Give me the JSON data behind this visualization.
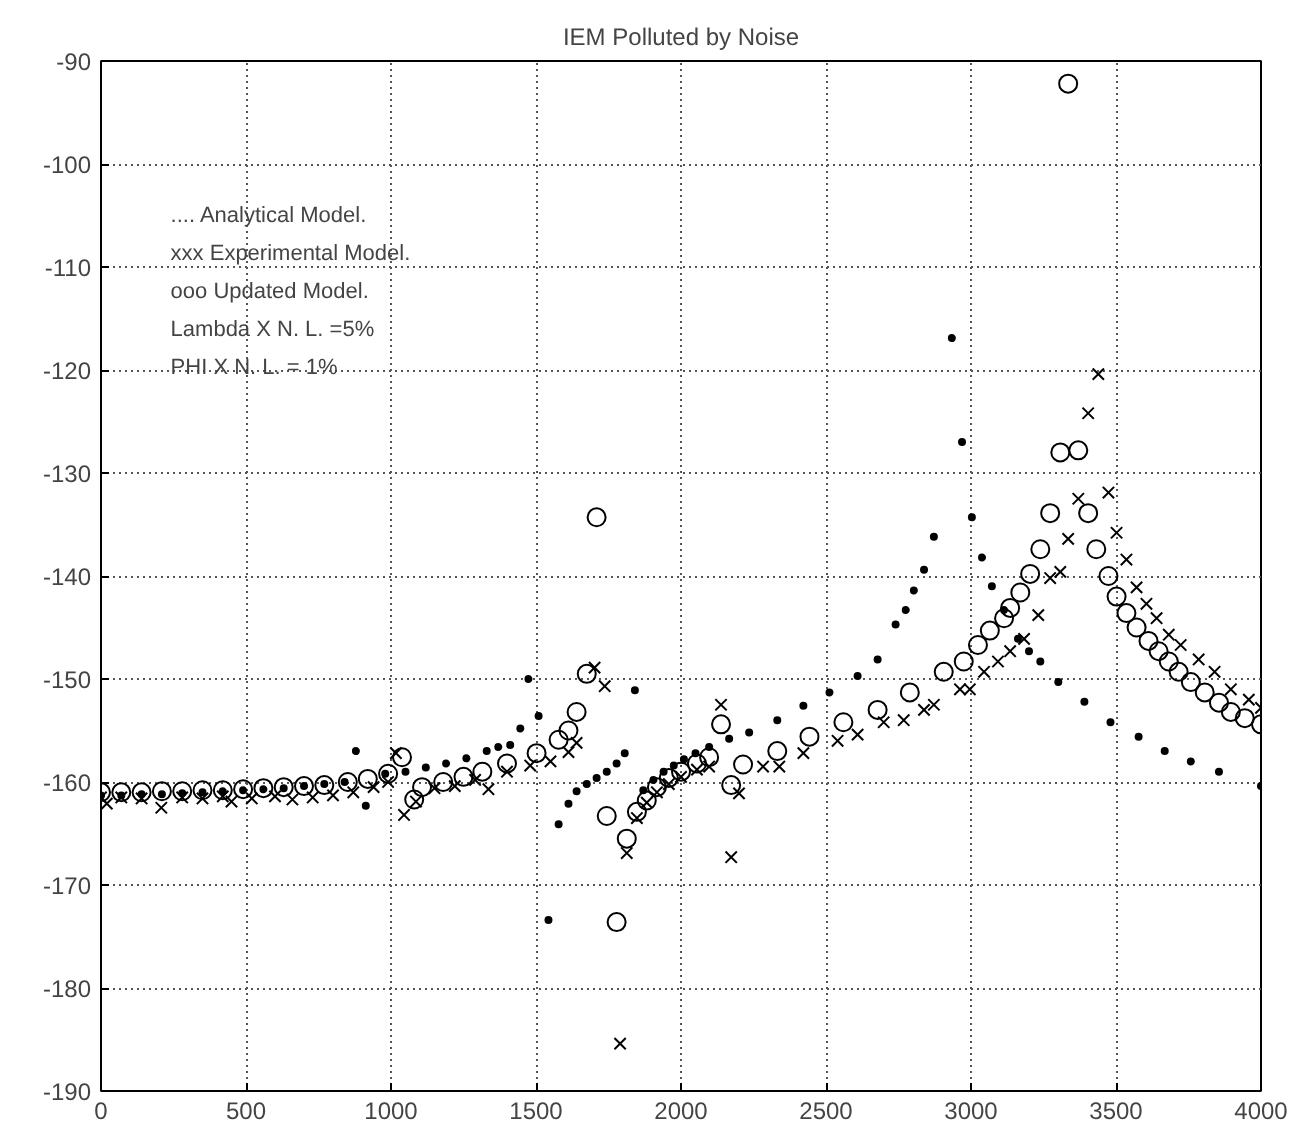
{
  "chart_data": {
    "type": "scatter",
    "title": "IEM Polluted by Noise",
    "annotations": [
      ".... Analytical Model.",
      "xxx Experimental Model.",
      "ooo Updated Model.",
      "Lambda X N. L. =5%",
      "PHI X N. L. = 1%"
    ],
    "xlim": [
      0,
      4000
    ],
    "xticks": [
      0,
      500,
      1000,
      1500,
      2000,
      2500,
      3000,
      3500,
      4000
    ],
    "ylim": [
      -190,
      -90
    ],
    "yticks": [
      -190,
      -180,
      -170,
      -160,
      -150,
      -140,
      -130,
      -120,
      -110,
      -100,
      -90
    ],
    "grid": true,
    "series": [
      {
        "marker": "dot",
        "color": "#000000",
        "x": [
          0,
          70,
          140,
          210,
          280,
          350,
          420,
          490,
          560,
          630,
          700,
          770,
          840,
          879,
          913,
          980,
          1050,
          1120,
          1190,
          1260,
          1330,
          1370,
          1411,
          1446,
          1474,
          1509,
          1543,
          1578,
          1612,
          1640,
          1675,
          1709,
          1744,
          1778,
          1806,
          1841,
          1870,
          1905,
          1940,
          1975,
          2010,
          2050,
          2097,
          2166,
          2235,
          2332,
          2422,
          2512,
          2609,
          2678,
          2740,
          2775,
          2803,
          2838,
          2872,
          2934,
          2969,
          3003,
          3038,
          3072,
          3114,
          3162,
          3200,
          3239,
          3301,
          3391,
          3481,
          3578,
          3668,
          3758,
          3855,
          4000
        ],
        "values": [
          -161.3,
          -161.3,
          -161.2,
          -161.2,
          -161.1,
          -161.0,
          -160.9,
          -160.8,
          -160.7,
          -160.6,
          -160.4,
          -160.2,
          -160.0,
          -157.0,
          -162.3,
          -159.2,
          -159.0,
          -158.6,
          -158.2,
          -157.7,
          -157.0,
          -156.6,
          -156.4,
          -154.8,
          -150.0,
          -153.6,
          -173.4,
          -164.1,
          -162.1,
          -160.9,
          -160.2,
          -159.6,
          -159.0,
          -158.2,
          -157.2,
          -151.1,
          -160.8,
          -159.8,
          -159.0,
          -158.4,
          -157.8,
          -157.2,
          -156.6,
          -155.8,
          -155.2,
          -154.0,
          -152.6,
          -151.3,
          -149.7,
          -148.1,
          -144.7,
          -143.3,
          -141.4,
          -139.4,
          -136.2,
          -116.9,
          -127.0,
          -134.3,
          -138.2,
          -141.0,
          -143.3,
          -146.1,
          -147.3,
          -148.3,
          -150.3,
          -152.2,
          -154.2,
          -155.6,
          -157.0,
          -158.0,
          -159.0,
          -160.4
        ]
      },
      {
        "marker": "cross",
        "color": "#000000",
        "x": [
          0,
          20,
          70,
          140,
          208,
          280,
          350,
          420,
          450,
          520,
          600,
          660,
          730,
          800,
          870,
          940,
          990,
          1017,
          1045,
          1086,
          1150,
          1220,
          1290,
          1336,
          1400,
          1480,
          1550,
          1612,
          1640,
          1702,
          1737,
          1790,
          1813,
          1848,
          1882,
          1917,
          1958,
          2000,
          2055,
          2097,
          2138,
          2173,
          2200,
          2283,
          2339,
          2422,
          2540,
          2609,
          2699,
          2768,
          2838,
          2872,
          2962,
          2996,
          3045,
          3093,
          3135,
          3183,
          3232,
          3273,
          3308,
          3335,
          3370,
          3404,
          3439,
          3474,
          3502,
          3536,
          3571,
          3605,
          3640,
          3682,
          3723,
          3785,
          3840,
          3896,
          3958,
          4000
        ],
        "values": [
          -161.5,
          -162.1,
          -161.5,
          -161.6,
          -162.5,
          -161.5,
          -161.6,
          -161.4,
          -161.9,
          -161.6,
          -161.4,
          -161.7,
          -161.5,
          -161.3,
          -161.0,
          -160.5,
          -160.0,
          -157.2,
          -163.2,
          -161.9,
          -160.6,
          -160.4,
          -159.8,
          -160.7,
          -159.0,
          -158.4,
          -158.0,
          -157.1,
          -156.2,
          -148.9,
          -150.7,
          -185.4,
          -166.9,
          -163.5,
          -162.0,
          -161.0,
          -160.2,
          -159.5,
          -158.8,
          -158.5,
          -152.5,
          -167.3,
          -161.1,
          -158.5,
          -158.5,
          -157.2,
          -156.0,
          -155.4,
          -154.2,
          -154.0,
          -153.0,
          -152.5,
          -151.0,
          -151.0,
          -149.3,
          -148.3,
          -147.3,
          -146.1,
          -143.8,
          -140.2,
          -139.6,
          -136.4,
          -132.5,
          -124.2,
          -120.4,
          -131.9,
          -135.8,
          -138.4,
          -141.1,
          -142.7,
          -144.1,
          -145.7,
          -146.7,
          -148.1,
          -149.3,
          -151.0,
          -152.0,
          -152.8
        ]
      },
      {
        "marker": "circle",
        "color": "#000000",
        "x": [
          0,
          70,
          140,
          210,
          280,
          350,
          420,
          490,
          560,
          630,
          700,
          770,
          851,
          920,
          990,
          1038,
          1080,
          1107,
          1180,
          1250,
          1315,
          1400,
          1502,
          1578,
          1612,
          1640,
          1675,
          1709,
          1744,
          1778,
          1813,
          1848,
          1882,
          1917,
          1958,
          2000,
          2055,
          2097,
          2138,
          2173,
          2214,
          2332,
          2443,
          2560,
          2678,
          2789,
          2906,
          2975,
          3024,
          3065,
          3114,
          3135,
          3170,
          3204,
          3239,
          3273,
          3308,
          3335,
          3370,
          3404,
          3432,
          3474,
          3502,
          3536,
          3571,
          3612,
          3647,
          3682,
          3716,
          3758,
          3806,
          3855,
          3896,
          3944,
          4000
        ],
        "values": [
          -161.0,
          -161.0,
          -161.0,
          -160.9,
          -160.9,
          -160.8,
          -160.8,
          -160.7,
          -160.6,
          -160.5,
          -160.4,
          -160.3,
          -160.0,
          -159.7,
          -159.2,
          -157.6,
          -161.7,
          -160.5,
          -160.0,
          -159.5,
          -159.0,
          -158.2,
          -157.2,
          -155.9,
          -155.0,
          -153.2,
          -149.5,
          -134.3,
          -163.3,
          -173.6,
          -165.5,
          -162.9,
          -161.8,
          -160.5,
          -159.6,
          -159.0,
          -158.2,
          -157.6,
          -154.4,
          -160.3,
          -158.3,
          -157.0,
          -155.6,
          -154.2,
          -153.0,
          -151.3,
          -149.3,
          -148.3,
          -146.7,
          -145.3,
          -144.1,
          -143.1,
          -141.6,
          -139.8,
          -137.4,
          -133.9,
          -128.0,
          -92.2,
          -127.8,
          -133.9,
          -137.4,
          -140.0,
          -142.0,
          -143.6,
          -145.0,
          -146.3,
          -147.3,
          -148.3,
          -149.3,
          -150.3,
          -151.3,
          -152.3,
          -153.2,
          -153.8,
          -154.4
        ]
      }
    ]
  }
}
